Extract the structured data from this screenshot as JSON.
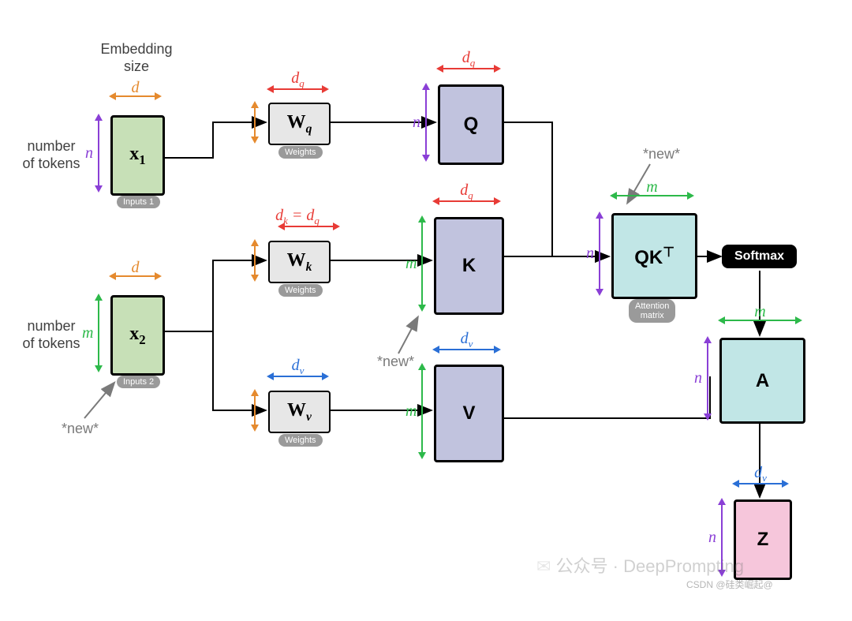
{
  "diagram": {
    "type": "flowchart",
    "background_color": "#ffffff",
    "colors": {
      "input_fill": "#c7e0b7",
      "weight_fill": "#e7e7e7",
      "qkv_fill": "#c1c3de",
      "attn_fill": "#c1e6e6",
      "output_fill": "#f6c6db",
      "softmax_bg": "#000000",
      "softmax_fg": "#ffffff",
      "border": "#000000",
      "dim_d_orange": "#e58a2e",
      "dim_dq_red": "#e83b36",
      "dim_n_purple": "#8a3fd6",
      "dim_m_green": "#2db94a",
      "dim_dv_blue": "#2a6fd6",
      "note_gray": "#7a7a7a",
      "badge_bg": "#9a9a9a"
    },
    "labels": {
      "embedding_size": "Embedding\nsize",
      "num_tokens": "number\nof tokens",
      "inputs1_badge": "Inputs 1",
      "inputs2_badge": "Inputs 2",
      "weights_badge": "Weights",
      "attn_badge": "Attention\nmatrix",
      "new_note": "*new*"
    },
    "dims": {
      "d": "d",
      "dq": "d",
      "dk_eq_dq": "d",
      "dv": "d",
      "n": "n",
      "m": "m"
    },
    "nodes": {
      "x1": {
        "text": "x",
        "sub": "1",
        "fill": "input_fill"
      },
      "x2": {
        "text": "x",
        "sub": "2",
        "fill": "input_fill"
      },
      "Wq": {
        "text": "W",
        "sub": "q",
        "fill": "weight_fill"
      },
      "Wk": {
        "text": "W",
        "sub": "k",
        "fill": "weight_fill"
      },
      "Wv": {
        "text": "W",
        "sub": "v",
        "fill": "weight_fill"
      },
      "Q": {
        "text": "Q",
        "fill": "qkv_fill"
      },
      "K": {
        "text": "K",
        "fill": "qkv_fill"
      },
      "V": {
        "text": "V",
        "fill": "qkv_fill"
      },
      "QKT": {
        "text": "QK",
        "sup": "⊤",
        "fill": "attn_fill"
      },
      "A": {
        "text": "A",
        "fill": "attn_fill"
      },
      "Z": {
        "text": "Z",
        "fill": "output_fill"
      },
      "softmax": {
        "text": "Softmax"
      }
    },
    "watermark": "公众号 · DeepPrompting",
    "watermark_small": "CSDN @硅类崛起@"
  }
}
